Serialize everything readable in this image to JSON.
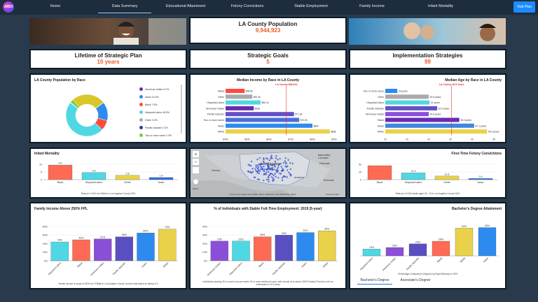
{
  "nav": {
    "logo_text": "ARDI",
    "items": [
      "Home",
      "Data Summary",
      "Educational Attainment",
      "Felony Convictions",
      "Stable Employment",
      "Family Income",
      "Infant Mortality"
    ],
    "active": "Data Summary",
    "visit_label": "Visit Plan"
  },
  "population": {
    "title": "LA County Population",
    "value": "9,944,923"
  },
  "lifetime": {
    "title": "Lifetime of Strategic Plan",
    "value": "10 years"
  },
  "goals": {
    "title": "Strategic Goals",
    "value": "5"
  },
  "strategies": {
    "title": "Implementation Strategies",
    "value": "99"
  },
  "race_pop": {
    "title": "LA County Population by Race",
    "chart_data": {
      "type": "pie",
      "categories": [
        "American Indian",
        "Asian",
        "Black",
        "Hispanic/Latino",
        "Other",
        "Pacific Islander",
        "Two or more races",
        "White"
      ],
      "labels": [
        "American Indian 0.2%",
        "Asian 14.4%",
        "Black 7.8%",
        "Hispanic/Latino 48.5%",
        "Other 0.3%",
        "Pacific Islander 0.2%",
        "Two or more races 2.3%",
        ""
      ],
      "values": [
        0.2,
        14.4,
        7.8,
        48.5,
        0.3,
        0.2,
        2.3,
        26.3
      ],
      "colors": [
        "#6a2bb5",
        "#2d8bf0",
        "#ff4b3e",
        "#4fd8e3",
        "#aaaaaa",
        "#2540a8",
        "#6fcf3b",
        "#d9c72a"
      ]
    }
  },
  "income": {
    "title": "Median Income by Race in LA County",
    "ref_label": "LA County $68,044",
    "chart_data": {
      "type": "bar",
      "orientation": "horizontal",
      "categories": [
        "Black",
        "Other",
        "Hispanic/Latino",
        "American Indian",
        "Pacific Islander",
        "Two or more races",
        "Asian",
        "White"
      ],
      "values": [
        48.8,
        52.3,
        56.1,
        53.0,
        71.5,
        73.9,
        80.0,
        88.0
      ],
      "labels": [
        "$48.8k",
        "$52.3k",
        "$56.1k",
        "$53k",
        "$71.5k",
        "$73.9k",
        "$80k",
        "$88k"
      ],
      "colors": [
        "#ff4b3e",
        "#aaaaaa",
        "#4fd8e3",
        "#6a2bb5",
        "#6350c8",
        "#4c6fd8",
        "#2d8bf0",
        "#e9d24a"
      ],
      "xticks": [
        "$40k",
        "$55k",
        "$60k",
        "$70k",
        "$80k",
        "$90k"
      ],
      "xlim": [
        40,
        90
      ],
      "reference": 68
    }
  },
  "age": {
    "title": "Median Age by Race in LA County",
    "ref_label": "LA County 36.5 Years",
    "chart_data": {
      "type": "bar",
      "orientation": "horizontal",
      "categories": [
        "Two or more races",
        "Other",
        "Hispanic/Latino",
        "Pacific Islander",
        "American Indian",
        "Black",
        "Asian",
        "White"
      ],
      "values": [
        23,
        30.8,
        31,
        32.9,
        30.8,
        38.4,
        42.1,
        45.3
      ],
      "labels": [
        "23 years",
        "30.8 years",
        "31 years",
        "32.9 years",
        "30.8 years",
        "38.4 years",
        "42.1 years",
        "45.3 years"
      ],
      "colors": [
        "#2d8bf0",
        "#aaaaaa",
        "#4fd8e3",
        "#6350c8",
        "#8a4fd8",
        "#6a2bb5",
        "#3f86e0",
        "#e9d24a"
      ],
      "xticks": [
        "20",
        "25",
        "30",
        "35",
        "40",
        "45"
      ],
      "xlim": [
        20,
        47
      ],
      "reference": 36.5
    }
  },
  "infant": {
    "title": "Infant Mortality",
    "note": "Rate per 1,000 Live Births in Los Angeles County 2019",
    "chart_data": {
      "type": "bar",
      "categories": [
        "Black",
        "Hispanic/Latino",
        "White",
        "Asian"
      ],
      "values": [
        9.5,
        4.6,
        2.8,
        1.4
      ],
      "labels": [
        "9.5",
        "4.6",
        "2.8",
        "1.4"
      ],
      "yticks": [
        "10",
        "5",
        "0"
      ],
      "ylim": [
        0,
        10
      ],
      "colors": [
        "#ff6a55",
        "#4fd8e3",
        "#e9d24a",
        "#2d6fe0"
      ]
    }
  },
  "map": {
    "label": "Los Angeles",
    "credit_left": "County of Los Angeles, Esri, HERE, Garmin, SafeGraph, FAO, METI/NASA, USGS",
    "credit_right": "Powered by Esri",
    "scale": "20 km",
    "places": [
      "Bakersfield",
      "Lancaster",
      "Palmdale",
      "Ventura",
      "Anaheim",
      "Riverside"
    ]
  },
  "felony": {
    "title": "First-Time Felony Convictions",
    "note": "Rate per 10,000 adults aged 18 - 44 in Los Angeles County 2019",
    "chart_data": {
      "type": "bar",
      "categories": [
        "Black",
        "Hispanic/Latino",
        "White",
        "Asian"
      ],
      "values": [
        45.5,
        21.9,
        11.6,
        3.9
      ],
      "labels": [
        "",
        "21.9",
        "11.6",
        "3.9"
      ],
      "yticks": [
        "50",
        "25",
        "0"
      ],
      "ylim": [
        0,
        50
      ],
      "colors": [
        "#ff6a55",
        "#4fd8e3",
        "#e9d24a",
        "#2d6fe0"
      ]
    }
  },
  "family": {
    "title": "Family Income Above 250% FPL",
    "note": "Family Income is equal to 250% for FOBMs in Los Angeles County. Income limit based on family of 4",
    "chart_data": {
      "type": "bar",
      "categories": [
        "Hispanic/Latino",
        "Black",
        "American Indian",
        "Pacific Islander",
        "Asian",
        "White"
      ],
      "values": [
        44,
        49,
        51,
        56,
        65,
        74
      ],
      "labels": [
        "44%",
        "49%",
        "51%",
        "56%",
        "65%",
        "74%"
      ],
      "yticks": [
        "80%",
        "60%",
        "40%",
        "20%",
        "0%"
      ],
      "ylim": [
        0,
        80
      ],
      "colors": [
        "#4fd8e3",
        "#ff6a55",
        "#8a4fd8",
        "#5a4fc0",
        "#2d8bf0",
        "#e9d24a"
      ]
    }
  },
  "employment": {
    "title": "% of Individuals with Stable Full-Time Employment: 2019 (5-year)",
    "note": "Individuals working 35 or more hours per week, 50 or more weeks per year, with income at or above 200% Federal Poverty Level for individuals in LA County",
    "chart_data": {
      "type": "bar",
      "categories": [
        "American Indian",
        "Hispanic/Latino",
        "Black",
        "Pacific Islander",
        "Asian",
        "White"
      ],
      "values": [
        23,
        23,
        28,
        30,
        33,
        35
      ],
      "labels": [
        "23%",
        "23%",
        "28%",
        "30%",
        "33%",
        "35%"
      ],
      "yticks": [
        "40%",
        "30%",
        "20%",
        "10%",
        "0%"
      ],
      "ylim": [
        0,
        40
      ],
      "colors": [
        "#8a4fd8",
        "#4fd8e3",
        "#ff6a55",
        "#5a4fc0",
        "#2d8bf0",
        "#e9d24a"
      ]
    }
  },
  "bachelors": {
    "title": "Bachelor's Degree Attainment",
    "note": "Percentage of Bachelor's Degrees by Race/Ethnicity in 2019",
    "tabs": [
      "Bachelor's Degree",
      "Associate's Degree"
    ],
    "chart_data": {
      "type": "bar",
      "categories": [
        "Hispanic/Latino",
        "American Indian",
        "Pacific Islander",
        "Black",
        "White",
        "Asian"
      ],
      "values": [
        13,
        16,
        23,
        28,
        53,
        54
      ],
      "labels": [
        "13%",
        "16%",
        "23%",
        "28%",
        "53%",
        "54%"
      ],
      "colors": [
        "#4fd8e3",
        "#8a4fd8",
        "#5a4fc0",
        "#ff6a55",
        "#e9d24a",
        "#2d8bf0"
      ],
      "ylim": [
        0,
        60
      ]
    }
  }
}
